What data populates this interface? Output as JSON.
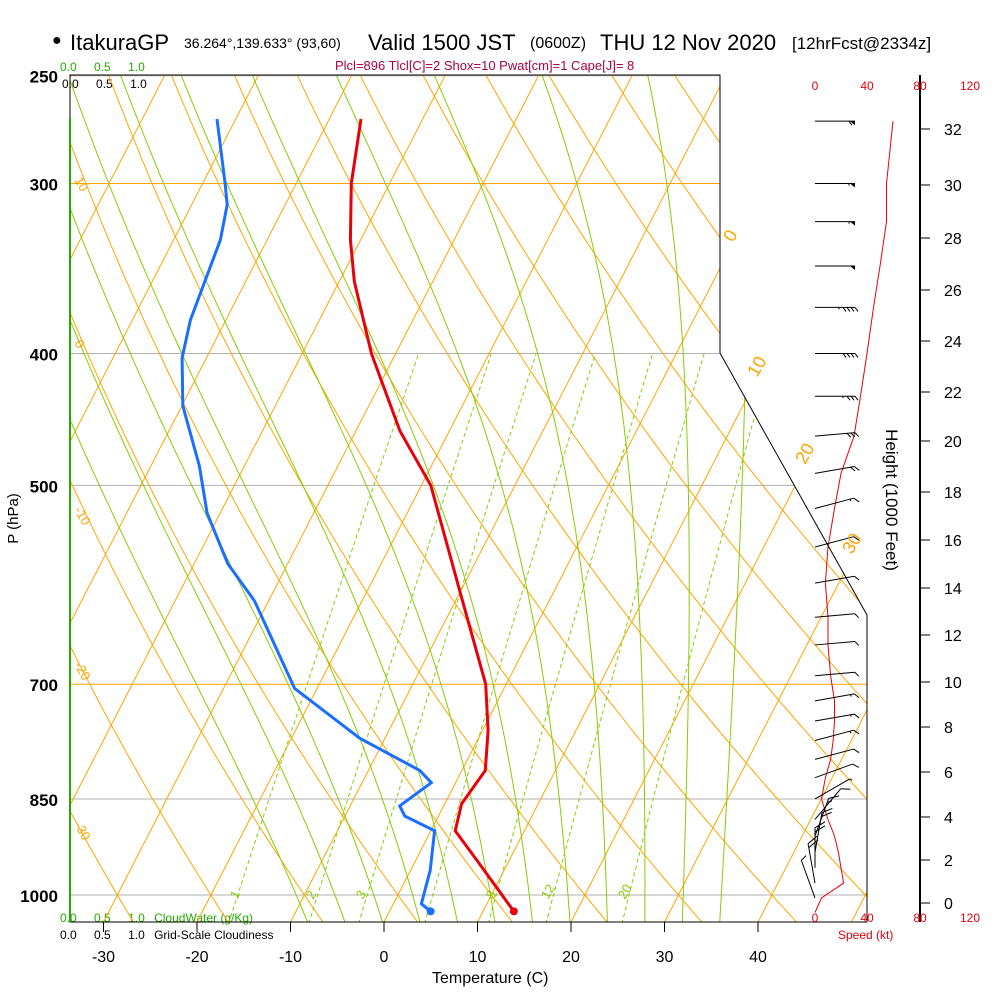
{
  "header": {
    "bullet": "●",
    "station": "ItakuraGP",
    "coords": "36.264°,139.633° (93,60)",
    "valid_label": "Valid 1500 JST",
    "utc": "(0600Z)",
    "date": "THU 12 Nov 2020",
    "forecast": "[12hrFcst@2334z]"
  },
  "indices": "Plcl=896 Tlcl[C]=2 Shox=10 Pwat[cm]=1 Cape[J]= 8",
  "colors": {
    "temp": "#e8000b",
    "dew": "#1a6fff",
    "isotherm": "#ffa500",
    "dry_adiabat": "#ffa500",
    "moist_adiabat": "#88cc00",
    "mixing": "#88cc00",
    "cloudwater": "#22aa00",
    "speed": "#e8000b",
    "indices": "#aa0044",
    "grid": "#b0b0b0"
  },
  "cloudwater_scale": {
    "ticks": [
      "0.0",
      "0.5",
      "1.0"
    ],
    "label": "CloudWater (g/Kg)"
  },
  "cloudiness_scale": {
    "ticks": [
      "0.0",
      "0.5",
      "1.0"
    ],
    "label": "Grid-Scale Cloudiness"
  },
  "speed_scale": {
    "ticks": [
      "0",
      "40",
      "80",
      "120"
    ],
    "label": "Speed (kt)"
  },
  "chart_data": {
    "type": "skew-t",
    "title": "ItakuraGP Valid 1500 JST THU 12 Nov 2020",
    "xlabel": "Temperature (C)",
    "ylabel": "P (hPa)",
    "y2label": "Height (1000 Feet)",
    "xticks": [
      "-30",
      "-20",
      "-10",
      "0",
      "10",
      "20",
      "30",
      "40"
    ],
    "xtick_values": [
      -30,
      -20,
      -10,
      0,
      10,
      20,
      30,
      40
    ],
    "yticks": [
      "250",
      "300",
      "400",
      "500",
      "700",
      "850",
      "1000"
    ],
    "ytick_values": [
      250,
      300,
      400,
      500,
      700,
      850,
      1000
    ],
    "height_ticks": [
      "0",
      "2",
      "4",
      "6",
      "8",
      "10",
      "12",
      "14",
      "16",
      "18",
      "20",
      "22",
      "24",
      "26",
      "28",
      "30",
      "32"
    ],
    "isotherm_labels": [
      "0",
      "10",
      "20",
      "30"
    ],
    "dry_adiabat_labels": [
      "10",
      "0",
      "-10",
      "-20",
      "-30"
    ],
    "mixing_ratio_labels": [
      "1",
      "2",
      "3",
      "8",
      "12",
      "20"
    ],
    "mixing_ratio_values": [
      1,
      2,
      3,
      5,
      8,
      12,
      20
    ],
    "temperature": {
      "p": [
        269,
        300,
        330,
        354,
        400,
        456,
        500,
        605,
        700,
        757,
        810,
        857,
        897,
        951,
        1028
      ],
      "t": [
        -46.6,
        -44.1,
        -41.1,
        -38.4,
        -32.6,
        -25.3,
        -19.0,
        -9.5,
        -2.2,
        0.6,
        2.5,
        1.8,
        2.6,
        7.2,
        13.3
      ]
    },
    "dewpoint": {
      "p": [
        269,
        300,
        311,
        330,
        378,
        403,
        437,
        484,
        524,
        571,
        608,
        705,
        767,
        810,
        827,
        860,
        875,
        897,
        959,
        1015,
        1028
      ],
      "t": [
        -62,
        -57.6,
        -56.2,
        -55,
        -53.8,
        -52.6,
        -49.9,
        -44.8,
        -41.4,
        -36.4,
        -31.5,
        -22.4,
        -12.7,
        -4.5,
        -2.6,
        -4.7,
        -3.6,
        0.4,
        2.1,
        3.0,
        4.4
      ]
    },
    "wind": {
      "p": [
        270,
        300,
        320,
        345,
        370,
        400,
        430,
        460,
        490,
        520,
        555,
        590,
        625,
        655,
        690,
        720,
        745,
        770,
        795,
        820,
        850,
        880,
        905,
        930,
        955,
        980,
        1005
      ],
      "dir": [
        270,
        270,
        270,
        270,
        270,
        270,
        270,
        275,
        280,
        285,
        285,
        280,
        275,
        275,
        275,
        280,
        280,
        285,
        285,
        290,
        300,
        320,
        340,
        350,
        0,
        10,
        20
      ],
      "speed": [
        60,
        55,
        55,
        50,
        45,
        40,
        35,
        30,
        20,
        15,
        10,
        8,
        10,
        10,
        12,
        15,
        15,
        14,
        12,
        8,
        5,
        10,
        15,
        18,
        20,
        22,
        5
      ]
    }
  }
}
